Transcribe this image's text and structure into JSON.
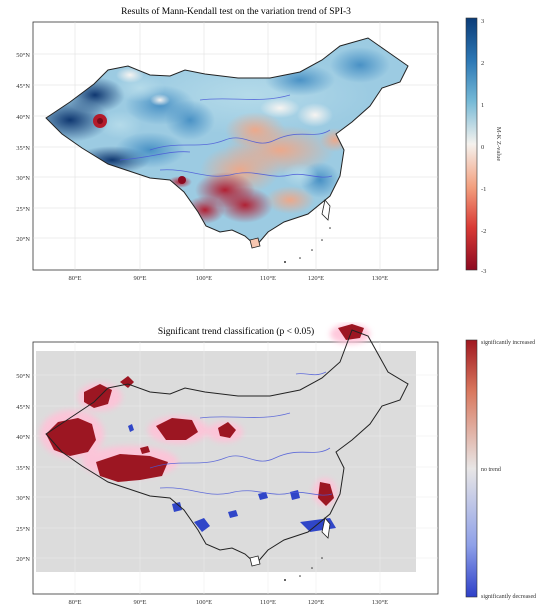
{
  "maps": [
    {
      "title": "Results of Mann-Kendall test on the variation trend of SPI-3",
      "colorbar": {
        "label": "M-K Z-value",
        "ticks": [
          "3",
          "2",
          "1",
          "0",
          "-1",
          "-2",
          "-3"
        ],
        "colors": [
          "#0b3c78",
          "#2d78b5",
          "#75b9d6",
          "#f5f2ee",
          "#f3a07f",
          "#d93a35",
          "#8c0a21"
        ]
      },
      "y_ticks": [
        "50°N",
        "45°N",
        "40°N",
        "35°N",
        "30°N",
        "25°N",
        "20°N"
      ],
      "x_ticks": [
        "80°E",
        "90°E",
        "100°E",
        "110°E",
        "120°E",
        "130°E"
      ]
    },
    {
      "title": "Significant trend classification (p < 0.05)",
      "colorbar": {
        "labels": [
          "significantly increased",
          "no trend",
          "significantly decreased"
        ],
        "colors": [
          "#a01820",
          "#e8e6e6",
          "#2d3fc8"
        ]
      },
      "y_ticks": [
        "50°N",
        "45°N",
        "40°N",
        "35°N",
        "30°N",
        "25°N",
        "20°N"
      ],
      "x_ticks": [
        "80°E",
        "90°E",
        "100°E",
        "110°E",
        "120°E",
        "130°E"
      ]
    }
  ]
}
